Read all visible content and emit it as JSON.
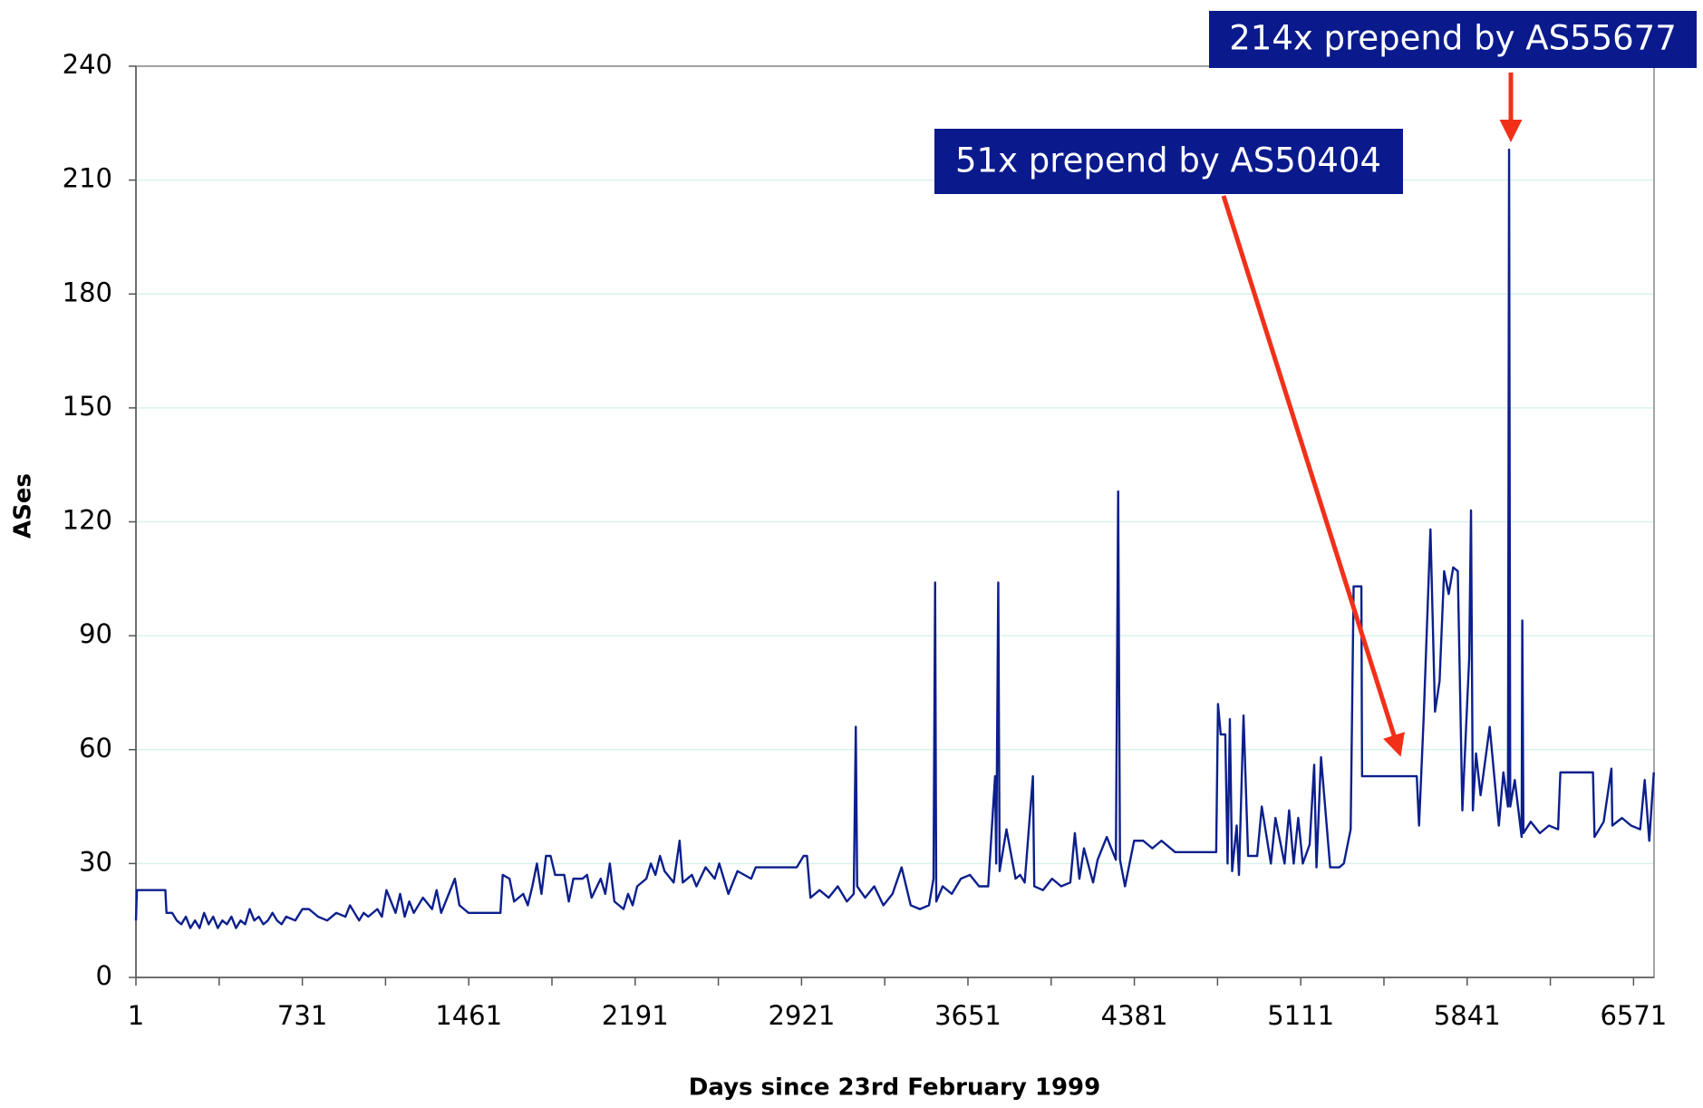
{
  "chart_data": {
    "type": "line",
    "xlabel": "Days since 23rd February 1999",
    "ylabel": "ASes",
    "x": [
      1,
      5,
      8,
      130,
      135,
      160,
      180,
      200,
      220,
      240,
      260,
      280,
      300,
      320,
      340,
      360,
      380,
      400,
      420,
      440,
      460,
      480,
      500,
      520,
      540,
      560,
      580,
      600,
      620,
      640,
      660,
      700,
      731,
      760,
      800,
      840,
      880,
      920,
      940,
      980,
      1000,
      1020,
      1060,
      1080,
      1100,
      1140,
      1160,
      1180,
      1200,
      1220,
      1260,
      1300,
      1320,
      1340,
      1360,
      1400,
      1420,
      1440,
      1460,
      1500,
      1600,
      1610,
      1640,
      1660,
      1700,
      1720,
      1740,
      1760,
      1780,
      1800,
      1820,
      1840,
      1880,
      1900,
      1920,
      1960,
      1980,
      2000,
      2040,
      2060,
      2080,
      2100,
      2140,
      2160,
      2180,
      2200,
      2240,
      2260,
      2280,
      2300,
      2320,
      2360,
      2386,
      2400,
      2440,
      2460,
      2500,
      2540,
      2560,
      2600,
      2640,
      2700,
      2720,
      2900,
      2930,
      2945,
      2960,
      3000,
      3040,
      3080,
      3120,
      3150,
      3159,
      3165,
      3200,
      3240,
      3280,
      3320,
      3360,
      3400,
      3440,
      3480,
      3500,
      3507,
      3512,
      3540,
      3580,
      3620,
      3660,
      3700,
      3740,
      3770,
      3775,
      3784,
      3790,
      3820,
      3860,
      3880,
      3900,
      3936,
      3942,
      3980,
      4020,
      4060,
      4100,
      4120,
      4140,
      4160,
      4200,
      4220,
      4260,
      4300,
      4310,
      4318,
      4340,
      4380,
      4420,
      4460,
      4500,
      4560,
      4600,
      4700,
      4740,
      4748,
      4760,
      4780,
      4790,
      4800,
      4810,
      4830,
      4840,
      4860,
      4880,
      4920,
      4940,
      4980,
      5000,
      5040,
      5060,
      5080,
      5100,
      5120,
      5150,
      5170,
      5180,
      5200,
      5240,
      5280,
      5300,
      5330,
      5343,
      5377,
      5380,
      5620,
      5630,
      5650,
      5680,
      5700,
      5720,
      5740,
      5760,
      5780,
      5800,
      5820,
      5850,
      5858,
      5866,
      5880,
      5900,
      5940,
      5980,
      6000,
      6020,
      6025,
      6030,
      6050,
      6080,
      6083,
      6088,
      6120,
      6160,
      6200,
      6240,
      6250,
      6393,
      6400,
      6440,
      6474,
      6478,
      6520,
      6560,
      6600,
      6620,
      6640,
      6660
    ],
    "series": [
      {
        "name": "ASes",
        "color": "#0c1f8c",
        "values": [
          15,
          23,
          23,
          23,
          17,
          17,
          15,
          14,
          16,
          13,
          15,
          13,
          17,
          14,
          16,
          13,
          15,
          14,
          16,
          13,
          15,
          14,
          18,
          15,
          16,
          14,
          15,
          17,
          15,
          14,
          16,
          15,
          18,
          18,
          16,
          15,
          17,
          16,
          19,
          15,
          17,
          16,
          18,
          16,
          23,
          17,
          22,
          16,
          20,
          17,
          21,
          18,
          23,
          17,
          20,
          26,
          19,
          18,
          17,
          17,
          17,
          27,
          26,
          20,
          22,
          19,
          24,
          30,
          22,
          32,
          32,
          27,
          27,
          20,
          26,
          26,
          27,
          21,
          26,
          22,
          30,
          20,
          18,
          22,
          19,
          24,
          26,
          30,
          27,
          32,
          28,
          25,
          36,
          25,
          27,
          24,
          29,
          26,
          30,
          22,
          28,
          26,
          29,
          29,
          32,
          32,
          21,
          23,
          21,
          24,
          20,
          22,
          66,
          24,
          21,
          24,
          19,
          22,
          29,
          19,
          18,
          19,
          26,
          104,
          20,
          24,
          22,
          26,
          27,
          24,
          24,
          53,
          30,
          104,
          28,
          39,
          26,
          27,
          25,
          53,
          24,
          23,
          26,
          24,
          25,
          38,
          26,
          34,
          25,
          31,
          37,
          31,
          128,
          31,
          24,
          36,
          36,
          34,
          36,
          33,
          33,
          33,
          33,
          72,
          64,
          64,
          30,
          68,
          28,
          40,
          27,
          69,
          32,
          32,
          45,
          30,
          42,
          30,
          44,
          30,
          42,
          30,
          35,
          56,
          29,
          58,
          29,
          29,
          30,
          39,
          103,
          103,
          53,
          53,
          40,
          68,
          118,
          70,
          78,
          107,
          101,
          108,
          107,
          44,
          84,
          123,
          44,
          59,
          48,
          66,
          40,
          54,
          45,
          218,
          45,
          52,
          37,
          94,
          38,
          41,
          38,
          40,
          39,
          54,
          54,
          37,
          41,
          55,
          40,
          42,
          40,
          39,
          52,
          36,
          54
        ]
      }
    ],
    "xlim": [
      1,
      6661
    ],
    "ylim": [
      0,
      240
    ],
    "xticks": [
      1,
      731,
      1461,
      2191,
      2921,
      3651,
      4381,
      5111,
      5841,
      6571
    ],
    "xticks_minor": [
      366,
      1096,
      1826,
      2556,
      3286,
      4016,
      4746,
      5476,
      6206
    ],
    "yticks": [
      0,
      30,
      60,
      90,
      120,
      150,
      180,
      210,
      240
    ],
    "grid": true,
    "annotations": [
      {
        "text": "214x prepend by AS55677"
      },
      {
        "text": "51x prepend by AS50404"
      }
    ]
  }
}
